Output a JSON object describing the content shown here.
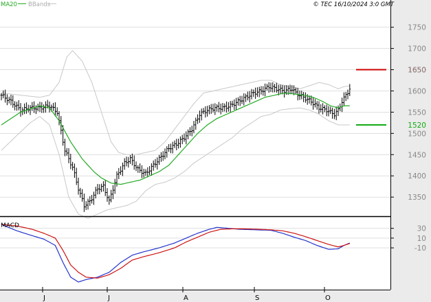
{
  "header": {
    "legend_ma": "MA20",
    "legend_bb": "BBands",
    "copyright": "© TEC 16/10/2024 3:0 GMT"
  },
  "colors": {
    "price": "#000000",
    "ma": "#22aa22",
    "bands": "#c8c8c8",
    "grid": "#cccccc",
    "axis_bg": "#ebebeb",
    "resistance": "#cc0000",
    "support": "#11aa11",
    "macd": "#2233cc",
    "signal": "#cc1111"
  },
  "chart_data": [
    {
      "type": "line",
      "panel": "price",
      "y_ticks": [
        1350,
        1400,
        1450,
        1500,
        1550,
        1600,
        1650,
        1700,
        1750
      ],
      "y_tick_labels": [
        "1350",
        "1400",
        "1450",
        "1500",
        "1550",
        "1600",
        "1650",
        "1700",
        "1750"
      ],
      "ylim": [
        1305,
        1785
      ],
      "x_tick_labels": [
        "J",
        "J",
        "A",
        "S",
        "O"
      ],
      "levels": [
        {
          "label": "1650",
          "value": 1650,
          "role": "resistance"
        },
        {
          "label": "1520",
          "value": 1520,
          "role": "support"
        }
      ],
      "price_keys": [
        [
          0,
          1590
        ],
        [
          5,
          1575
        ],
        [
          10,
          1555
        ],
        [
          15,
          1560
        ],
        [
          20,
          1560
        ],
        [
          25,
          1565
        ],
        [
          29,
          1550
        ],
        [
          33,
          1460
        ],
        [
          37,
          1420
        ],
        [
          40,
          1370
        ],
        [
          43,
          1330
        ],
        [
          46,
          1340
        ],
        [
          50,
          1370
        ],
        [
          53,
          1375
        ],
        [
          56,
          1340
        ],
        [
          60,
          1400
        ],
        [
          64,
          1430
        ],
        [
          67,
          1440
        ],
        [
          71,
          1415
        ],
        [
          75,
          1405
        ],
        [
          79,
          1425
        ],
        [
          83,
          1445
        ],
        [
          87,
          1465
        ],
        [
          91,
          1475
        ],
        [
          95,
          1490
        ],
        [
          99,
          1510
        ],
        [
          103,
          1545
        ],
        [
          107,
          1555
        ],
        [
          111,
          1560
        ],
        [
          115,
          1560
        ],
        [
          119,
          1565
        ],
        [
          123,
          1575
        ],
        [
          127,
          1585
        ],
        [
          131,
          1595
        ],
        [
          135,
          1600
        ],
        [
          139,
          1610
        ],
        [
          143,
          1605
        ],
        [
          147,
          1600
        ],
        [
          151,
          1605
        ],
        [
          153,
          1595
        ],
        [
          157,
          1585
        ],
        [
          161,
          1575
        ],
        [
          165,
          1560
        ],
        [
          169,
          1555
        ],
        [
          173,
          1545
        ],
        [
          175,
          1555
        ],
        [
          177,
          1575
        ],
        [
          179,
          1590
        ],
        [
          181,
          1605
        ]
      ],
      "ma_keys": [
        [
          0,
          1520
        ],
        [
          10,
          1550
        ],
        [
          20,
          1565
        ],
        [
          25,
          1560
        ],
        [
          30,
          1530
        ],
        [
          36,
          1480
        ],
        [
          42,
          1440
        ],
        [
          48,
          1410
        ],
        [
          52,
          1395
        ],
        [
          57,
          1383
        ],
        [
          62,
          1380
        ],
        [
          67,
          1385
        ],
        [
          72,
          1390
        ],
        [
          77,
          1400
        ],
        [
          82,
          1410
        ],
        [
          87,
          1425
        ],
        [
          92,
          1450
        ],
        [
          97,
          1475
        ],
        [
          102,
          1500
        ],
        [
          107,
          1520
        ],
        [
          112,
          1535
        ],
        [
          117,
          1545
        ],
        [
          122,
          1555
        ],
        [
          127,
          1565
        ],
        [
          132,
          1575
        ],
        [
          137,
          1585
        ],
        [
          142,
          1590
        ],
        [
          147,
          1595
        ],
        [
          152,
          1593
        ],
        [
          157,
          1590
        ],
        [
          162,
          1585
        ],
        [
          167,
          1575
        ],
        [
          171,
          1565
        ],
        [
          175,
          1560
        ],
        [
          178,
          1565
        ],
        [
          181,
          1565
        ]
      ],
      "upper_band_keys": [
        [
          0,
          1595
        ],
        [
          10,
          1590
        ],
        [
          20,
          1585
        ],
        [
          25,
          1590
        ],
        [
          30,
          1620
        ],
        [
          34,
          1680
        ],
        [
          37,
          1695
        ],
        [
          42,
          1670
        ],
        [
          47,
          1620
        ],
        [
          52,
          1550
        ],
        [
          57,
          1480
        ],
        [
          61,
          1455
        ],
        [
          65,
          1450
        ],
        [
          70,
          1450
        ],
        [
          75,
          1455
        ],
        [
          80,
          1460
        ],
        [
          85,
          1480
        ],
        [
          90,
          1510
        ],
        [
          95,
          1540
        ],
        [
          100,
          1570
        ],
        [
          105,
          1595
        ],
        [
          110,
          1600
        ],
        [
          115,
          1605
        ],
        [
          120,
          1610
        ],
        [
          125,
          1615
        ],
        [
          130,
          1620
        ],
        [
          135,
          1625
        ],
        [
          140,
          1625
        ],
        [
          145,
          1615
        ],
        [
          150,
          1610
        ],
        [
          155,
          1605
        ],
        [
          160,
          1612
        ],
        [
          165,
          1620
        ],
        [
          170,
          1615
        ],
        [
          175,
          1605
        ],
        [
          178,
          1610
        ],
        [
          181,
          1612
        ]
      ],
      "lower_band_keys": [
        [
          0,
          1460
        ],
        [
          8,
          1495
        ],
        [
          15,
          1525
        ],
        [
          20,
          1540
        ],
        [
          25,
          1520
        ],
        [
          30,
          1450
        ],
        [
          35,
          1350
        ],
        [
          40,
          1310
        ],
        [
          45,
          1300
        ],
        [
          50,
          1310
        ],
        [
          55,
          1320
        ],
        [
          60,
          1325
        ],
        [
          65,
          1330
        ],
        [
          70,
          1340
        ],
        [
          75,
          1365
        ],
        [
          80,
          1380
        ],
        [
          85,
          1385
        ],
        [
          90,
          1395
        ],
        [
          95,
          1410
        ],
        [
          100,
          1430
        ],
        [
          105,
          1445
        ],
        [
          110,
          1460
        ],
        [
          115,
          1475
        ],
        [
          120,
          1490
        ],
        [
          125,
          1510
        ],
        [
          130,
          1525
        ],
        [
          135,
          1540
        ],
        [
          140,
          1545
        ],
        [
          145,
          1555
        ],
        [
          150,
          1558
        ],
        [
          155,
          1560
        ],
        [
          160,
          1555
        ],
        [
          165,
          1545
        ],
        [
          170,
          1530
        ],
        [
          175,
          1520
        ],
        [
          181,
          1520
        ]
      ]
    },
    {
      "type": "line",
      "panel": "macd",
      "title": "MACD",
      "y_ticks": [
        30,
        10,
        -10
      ],
      "y_tick_labels": [
        "30",
        "10",
        "-10"
      ],
      "ylim": [
        -90,
        45
      ],
      "series": [
        {
          "role": "macd",
          "keys": [
            [
              0,
              38
            ],
            [
              8,
              25
            ],
            [
              16,
              15
            ],
            [
              22,
              8
            ],
            [
              28,
              -5
            ],
            [
              32,
              -40
            ],
            [
              36,
              -70
            ],
            [
              40,
              -80
            ],
            [
              44,
              -75
            ],
            [
              50,
              -70
            ],
            [
              56,
              -60
            ],
            [
              62,
              -40
            ],
            [
              68,
              -25
            ],
            [
              74,
              -18
            ],
            [
              82,
              -10
            ],
            [
              90,
              0
            ],
            [
              96,
              10
            ],
            [
              102,
              20
            ],
            [
              108,
              28
            ],
            [
              112,
              32
            ],
            [
              118,
              30
            ],
            [
              124,
              28
            ],
            [
              132,
              27
            ],
            [
              140,
              26
            ],
            [
              146,
              20
            ],
            [
              152,
              12
            ],
            [
              158,
              5
            ],
            [
              164,
              -5
            ],
            [
              170,
              -13
            ],
            [
              175,
              -12
            ],
            [
              178,
              -5
            ],
            [
              181,
              0
            ]
          ]
        },
        {
          "role": "signal",
          "keys": [
            [
              0,
              38
            ],
            [
              8,
              35
            ],
            [
              16,
              28
            ],
            [
              22,
              20
            ],
            [
              28,
              10
            ],
            [
              32,
              -15
            ],
            [
              36,
              -45
            ],
            [
              40,
              -60
            ],
            [
              44,
              -70
            ],
            [
              50,
              -72
            ],
            [
              56,
              -65
            ],
            [
              62,
              -52
            ],
            [
              68,
              -35
            ],
            [
              74,
              -28
            ],
            [
              82,
              -20
            ],
            [
              90,
              -10
            ],
            [
              96,
              2
            ],
            [
              102,
              12
            ],
            [
              108,
              22
            ],
            [
              114,
              28
            ],
            [
              120,
              29
            ],
            [
              126,
              29
            ],
            [
              134,
              28
            ],
            [
              140,
              27
            ],
            [
              146,
              25
            ],
            [
              152,
              20
            ],
            [
              158,
              13
            ],
            [
              164,
              5
            ],
            [
              170,
              -3
            ],
            [
              175,
              -8
            ],
            [
              178,
              -5
            ],
            [
              181,
              -1
            ]
          ]
        }
      ]
    }
  ]
}
